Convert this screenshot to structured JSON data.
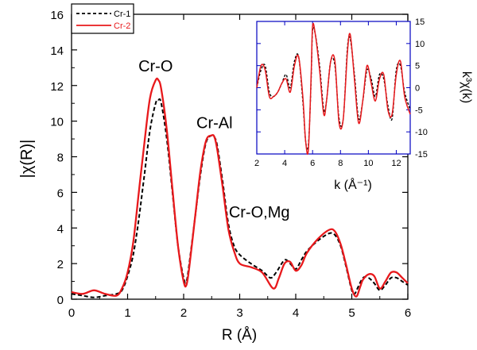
{
  "chart_data": [
    {
      "type": "line",
      "xlabel": "R (Å)",
      "ylabel": "|χ(R)|",
      "xlim": [
        0,
        6
      ],
      "ylim": [
        0,
        16
      ],
      "xticks": [
        "0",
        "1",
        "2",
        "3",
        "4",
        "5",
        "6"
      ],
      "yticks": [
        "0",
        "2",
        "4",
        "6",
        "8",
        "10",
        "12",
        "14",
        "16"
      ],
      "legend_position": "top-left",
      "annotations": [
        {
          "text": "Cr-O",
          "x": 1.5,
          "y": 12.8
        },
        {
          "text": "Cr-Al",
          "x": 2.55,
          "y": 9.6
        },
        {
          "text": "Cr-O,Mg",
          "x": 3.35,
          "y": 4.6
        }
      ],
      "series": [
        {
          "name": "Cr-1",
          "style": "dashed",
          "color": "#000000",
          "x": [
            0,
            0.2,
            0.4,
            0.6,
            0.8,
            0.9,
            1.0,
            1.1,
            1.2,
            1.3,
            1.4,
            1.5,
            1.55,
            1.6,
            1.7,
            1.8,
            1.9,
            2.0,
            2.05,
            2.1,
            2.2,
            2.3,
            2.4,
            2.5,
            2.55,
            2.6,
            2.7,
            2.8,
            2.9,
            3.0,
            3.2,
            3.4,
            3.55,
            3.65,
            3.8,
            3.9,
            4.0,
            4.1,
            4.2,
            4.4,
            4.6,
            4.7,
            4.8,
            4.9,
            5.0,
            5.05,
            5.1,
            5.2,
            5.3,
            5.4,
            5.5,
            5.6,
            5.7,
            5.8,
            5.9,
            6.0
          ],
          "y": [
            0.3,
            0.2,
            0.1,
            0.2,
            0.3,
            0.5,
            1.3,
            2.5,
            4.5,
            7.0,
            9.5,
            11.0,
            11.2,
            11.0,
            9.0,
            6.0,
            3.0,
            1.2,
            1.0,
            2.0,
            4.5,
            7.0,
            8.8,
            9.2,
            9.1,
            8.6,
            6.5,
            4.2,
            3.0,
            2.5,
            2.0,
            1.6,
            1.2,
            1.5,
            2.2,
            2.0,
            1.7,
            2.2,
            2.7,
            3.3,
            3.7,
            3.6,
            3.0,
            1.8,
            0.5,
            0.3,
            0.6,
            1.2,
            1.2,
            0.9,
            0.5,
            0.8,
            1.2,
            1.2,
            1.0,
            0.8
          ]
        },
        {
          "name": "Cr-2",
          "style": "solid",
          "color": "#e8191c",
          "x": [
            0,
            0.2,
            0.4,
            0.6,
            0.8,
            0.9,
            1.0,
            1.1,
            1.2,
            1.3,
            1.4,
            1.5,
            1.55,
            1.6,
            1.7,
            1.8,
            1.9,
            2.0,
            2.05,
            2.1,
            2.2,
            2.3,
            2.4,
            2.5,
            2.55,
            2.6,
            2.7,
            2.8,
            2.9,
            3.0,
            3.2,
            3.4,
            3.6,
            3.7,
            3.8,
            3.9,
            4.0,
            4.1,
            4.2,
            4.4,
            4.6,
            4.7,
            4.8,
            4.9,
            5.0,
            5.08,
            5.15,
            5.2,
            5.3,
            5.4,
            5.5,
            5.6,
            5.7,
            5.8,
            5.9,
            6.0
          ],
          "y": [
            0.4,
            0.3,
            0.5,
            0.3,
            0.2,
            0.6,
            1.5,
            3.2,
            6.0,
            8.8,
            11.3,
            12.3,
            12.3,
            11.8,
            9.5,
            6.2,
            3.0,
            1.0,
            0.8,
            1.8,
            4.5,
            7.2,
            8.9,
            9.2,
            9.1,
            8.4,
            6.2,
            3.9,
            2.7,
            2.0,
            1.8,
            1.5,
            0.6,
            1.2,
            2.0,
            2.1,
            1.6,
            1.9,
            2.6,
            3.4,
            3.9,
            3.8,
            3.1,
            1.9,
            0.6,
            0.15,
            0.7,
            1.1,
            1.4,
            1.3,
            0.6,
            1.0,
            1.5,
            1.5,
            1.2,
            0.9
          ]
        }
      ]
    },
    {
      "type": "line",
      "xlabel": "k (Å⁻¹)",
      "ylabel": "k³χ(k)",
      "xlim": [
        2,
        13
      ],
      "ylim": [
        -15,
        15
      ],
      "xticks": [
        "2",
        "4",
        "6",
        "8",
        "10",
        "12"
      ],
      "yticks": [
        "15",
        "10",
        "5",
        "0",
        "-5",
        "-10",
        "-15"
      ],
      "series": [
        {
          "name": "Cr-1",
          "style": "dashed",
          "color": "#000000",
          "x": [
            2.0,
            2.3,
            2.6,
            2.9,
            3.2,
            3.5,
            3.8,
            4.1,
            4.4,
            4.7,
            5.0,
            5.3,
            5.5,
            5.7,
            5.9,
            6.0,
            6.2,
            6.5,
            6.8,
            7.0,
            7.3,
            7.6,
            7.9,
            8.2,
            8.5,
            8.7,
            9.0,
            9.3,
            9.6,
            9.9,
            10.2,
            10.5,
            10.8,
            11.1,
            11.4,
            11.7,
            12.0,
            12.3,
            12.6,
            13.0
          ],
          "y": [
            0,
            4,
            5,
            -1,
            -2,
            -1,
            1,
            3,
            0,
            6,
            7,
            -3,
            -12,
            -13,
            2,
            13,
            12,
            5,
            -5,
            -3,
            6,
            5,
            -7,
            -7,
            9,
            11,
            3,
            -7,
            -3,
            4,
            2,
            -2,
            3,
            2,
            -4,
            -7,
            4,
            5,
            -1,
            -5
          ]
        },
        {
          "name": "Cr-2",
          "style": "solid",
          "color": "#e8191c",
          "x": [
            2.0,
            2.3,
            2.6,
            2.9,
            3.2,
            3.5,
            3.8,
            4.1,
            4.4,
            4.7,
            5.0,
            5.3,
            5.5,
            5.7,
            5.9,
            6.0,
            6.2,
            6.5,
            6.8,
            7.0,
            7.3,
            7.6,
            7.9,
            8.2,
            8.5,
            8.7,
            9.0,
            9.3,
            9.6,
            9.9,
            10.2,
            10.5,
            10.8,
            11.1,
            11.4,
            11.7,
            12.0,
            12.3,
            12.6,
            13.0
          ],
          "y": [
            0,
            5,
            4,
            -2,
            -2,
            -1,
            1,
            2,
            -1,
            5,
            7,
            -2,
            -12,
            -14,
            3,
            14,
            12,
            4,
            -6,
            -3,
            6,
            6,
            -8,
            -7,
            8,
            12,
            2,
            -8,
            -3,
            5,
            1,
            -3,
            2,
            3,
            -5,
            -6,
            3,
            6,
            -2,
            -6
          ]
        }
      ]
    }
  ]
}
